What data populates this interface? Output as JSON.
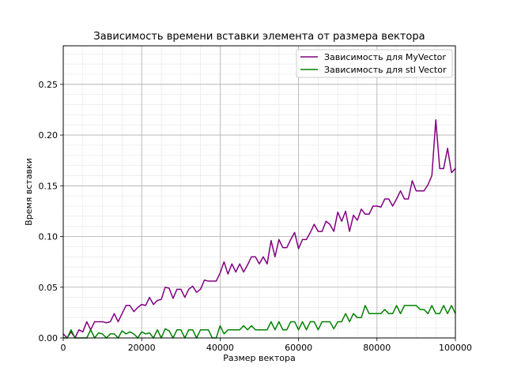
{
  "chart_data": {
    "type": "line",
    "title": "Зависимость времени вставки элемента от размера вектора",
    "xlabel": "Размер вектора",
    "ylabel": "Время вставки",
    "xlim": [
      0,
      100000
    ],
    "ylim": [
      0,
      0.288
    ],
    "x_ticks": [
      0,
      20000,
      40000,
      60000,
      80000,
      100000
    ],
    "x_tick_labels": [
      "0",
      "20000",
      "40000",
      "60000",
      "80000",
      "100000"
    ],
    "y_ticks": [
      0,
      0.05,
      0.1,
      0.15,
      0.2,
      0.25
    ],
    "y_tick_labels": [
      "0.00",
      "0.05",
      "0.10",
      "0.15",
      "0.20",
      "0.25"
    ],
    "grid": {
      "major": true,
      "minor": true
    },
    "legend_position": "top-right",
    "x": [
      0,
      1000,
      2000,
      3000,
      4000,
      5000,
      6000,
      7000,
      8000,
      9000,
      10000,
      11000,
      12000,
      13000,
      14000,
      15000,
      16000,
      17000,
      18000,
      19000,
      20000,
      21000,
      22000,
      23000,
      24000,
      25000,
      26000,
      27000,
      28000,
      29000,
      30000,
      31000,
      32000,
      33000,
      34000,
      35000,
      36000,
      37000,
      38000,
      39000,
      40000,
      41000,
      42000,
      43000,
      44000,
      45000,
      46000,
      47000,
      48000,
      49000,
      50000,
      51000,
      52000,
      53000,
      54000,
      55000,
      56000,
      57000,
      58000,
      59000,
      60000,
      61000,
      62000,
      63000,
      64000,
      65000,
      66000,
      67000,
      68000,
      69000,
      70000,
      71000,
      72000,
      73000,
      74000,
      75000,
      76000,
      77000,
      78000,
      79000,
      80000,
      81000,
      82000,
      83000,
      84000,
      85000,
      86000,
      87000,
      88000,
      89000,
      90000,
      91000,
      92000,
      93000,
      94000,
      95000,
      96000,
      97000,
      98000,
      99000,
      100000
    ],
    "series": [
      {
        "name": "Зависимость для MyVector",
        "color": "#800080",
        "values": [
          0.004,
          0.0,
          0.006,
          0.0,
          0.008,
          0.006,
          0.016,
          0.008,
          0.016,
          0.016,
          0.016,
          0.015,
          0.016,
          0.024,
          0.016,
          0.024,
          0.032,
          0.032,
          0.026,
          0.03,
          0.033,
          0.032,
          0.04,
          0.033,
          0.037,
          0.038,
          0.05,
          0.049,
          0.039,
          0.048,
          0.048,
          0.04,
          0.048,
          0.051,
          0.045,
          0.048,
          0.057,
          0.056,
          0.056,
          0.056,
          0.064,
          0.075,
          0.063,
          0.073,
          0.065,
          0.073,
          0.065,
          0.072,
          0.08,
          0.08,
          0.073,
          0.08,
          0.073,
          0.096,
          0.08,
          0.097,
          0.089,
          0.089,
          0.097,
          0.104,
          0.088,
          0.097,
          0.097,
          0.104,
          0.112,
          0.105,
          0.105,
          0.115,
          0.112,
          0.105,
          0.124,
          0.115,
          0.125,
          0.105,
          0.121,
          0.116,
          0.127,
          0.122,
          0.122,
          0.13,
          0.13,
          0.129,
          0.137,
          0.137,
          0.13,
          0.137,
          0.145,
          0.137,
          0.137,
          0.155,
          0.145,
          0.145,
          0.145,
          0.151,
          0.16,
          0.215,
          0.167,
          0.167,
          0.187,
          0.163,
          0.167
        ]
      },
      {
        "name": "Зависимость для stl Vector",
        "color": "#008000",
        "values": [
          0.0,
          0.0,
          0.008,
          0.0,
          0.0,
          0.0,
          0.0,
          0.008,
          0.0,
          0.005,
          0.004,
          0.0,
          0.004,
          0.004,
          0.0,
          0.007,
          0.004,
          0.006,
          0.004,
          0.0,
          0.006,
          0.004,
          0.005,
          0.0,
          0.008,
          0.0,
          0.009,
          0.007,
          0.0,
          0.008,
          0.008,
          0.0,
          0.008,
          0.008,
          0.0,
          0.008,
          0.008,
          0.008,
          0.0,
          0.0,
          0.012,
          0.004,
          0.008,
          0.008,
          0.008,
          0.008,
          0.012,
          0.008,
          0.012,
          0.008,
          0.008,
          0.008,
          0.008,
          0.016,
          0.008,
          0.016,
          0.008,
          0.008,
          0.016,
          0.016,
          0.008,
          0.016,
          0.008,
          0.016,
          0.016,
          0.008,
          0.016,
          0.016,
          0.016,
          0.009,
          0.016,
          0.016,
          0.024,
          0.016,
          0.024,
          0.02,
          0.02,
          0.032,
          0.024,
          0.024,
          0.024,
          0.024,
          0.028,
          0.024,
          0.024,
          0.032,
          0.024,
          0.032,
          0.032,
          0.032,
          0.032,
          0.028,
          0.028,
          0.024,
          0.032,
          0.024,
          0.024,
          0.032,
          0.024,
          0.032,
          0.024
        ]
      }
    ]
  }
}
